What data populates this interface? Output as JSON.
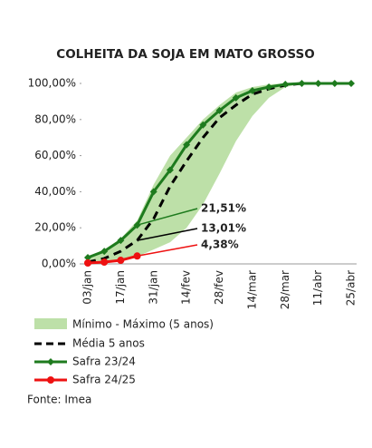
{
  "chart_data": {
    "type": "line",
    "title": "COLHEITA DA SOJA EM MATO GROSSO",
    "categories": [
      "03/jan",
      null,
      "17/jan",
      null,
      "31/jan",
      null,
      "14/fev",
      null,
      "28/fev",
      null,
      "14/mar",
      null,
      "28/mar",
      null,
      "11/abr",
      null,
      "25/abr"
    ],
    "ylim": [
      0,
      100
    ],
    "yticks": [
      {
        "value": 0,
        "label": "0,00%"
      },
      {
        "value": 20,
        "label": "20,00%"
      },
      {
        "value": 40,
        "label": "40,00%"
      },
      {
        "value": 60,
        "label": "60,00%"
      },
      {
        "value": 80,
        "label": "80,00%"
      },
      {
        "value": 100,
        "label": "100,00%"
      }
    ],
    "band": {
      "name": "Mínimo - Máximo (5 anos)",
      "color": "#bde0a8",
      "low": [
        0,
        0.5,
        2,
        4,
        8,
        12,
        20,
        33,
        50,
        68,
        82,
        92,
        98,
        100,
        100,
        100,
        100
      ],
      "high": [
        4,
        8,
        14,
        24,
        44,
        60,
        70,
        80,
        88,
        95,
        98,
        99.5,
        100,
        100,
        100,
        100,
        100
      ]
    },
    "series": [
      {
        "name": "Média 5 anos",
        "color": "#000000",
        "style": "dashed",
        "values": [
          1,
          3,
          7,
          13.01,
          25,
          43,
          57,
          70,
          81,
          88,
          94,
          97,
          99,
          100,
          100,
          100,
          100
        ],
        "value_labels": [
          null,
          null,
          null,
          "13,01%",
          null,
          null,
          null,
          null,
          null,
          null,
          null,
          null,
          null,
          null,
          null,
          null,
          null
        ]
      },
      {
        "name": "Safra 23/24",
        "color": "#1e7b1e",
        "marker": "diamond",
        "values": [
          3.5,
          7,
          13,
          21.51,
          40,
          52,
          66,
          77,
          85,
          92,
          96,
          98,
          99.5,
          100,
          100,
          100,
          100
        ],
        "value_labels": [
          null,
          null,
          null,
          "21,51%",
          null,
          null,
          null,
          null,
          null,
          null,
          null,
          null,
          null,
          null,
          null,
          null,
          null
        ]
      },
      {
        "name": "Safra 24/25",
        "color": "#ee1111",
        "marker": "circle",
        "values": [
          0.5,
          1,
          2,
          4.38,
          null,
          null,
          null,
          null,
          null,
          null,
          null,
          null,
          null,
          null,
          null,
          null,
          null
        ],
        "value_labels": [
          null,
          null,
          null,
          "4,38%",
          null,
          null,
          null,
          null,
          null,
          null,
          null,
          null,
          null,
          null,
          null,
          null,
          null
        ]
      }
    ],
    "source": "Fonte: Imea"
  }
}
